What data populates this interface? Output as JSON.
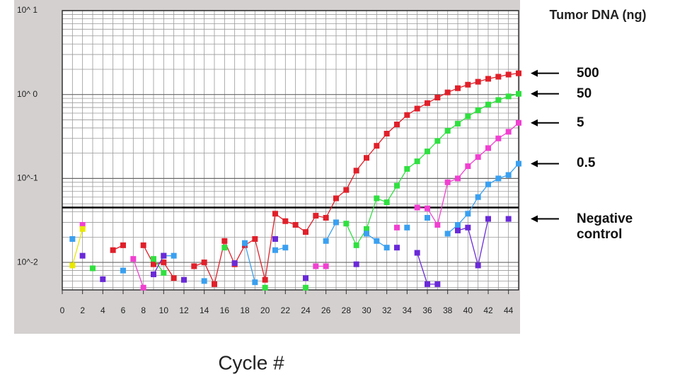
{
  "chart_data": {
    "type": "line",
    "legend_title": "Tumor DNA (ng)",
    "xlabel": "Cycle #",
    "log_y": true,
    "grid": true,
    "threshold": 0.045,
    "xlim": [
      0,
      45
    ],
    "ylim": [
      0.0047,
      10
    ],
    "xticks": [
      0,
      2,
      4,
      6,
      8,
      10,
      12,
      14,
      16,
      18,
      20,
      22,
      24,
      26,
      28,
      30,
      32,
      34,
      36,
      38,
      40,
      42,
      44
    ],
    "yticks": [
      {
        "value": 10,
        "label": "10^ 1"
      },
      {
        "value": 1,
        "label": "10^ 0"
      },
      {
        "value": 0.1,
        "label": "10^-1"
      },
      {
        "value": 0.01,
        "label": "10^-2"
      }
    ],
    "yminor": [
      0.005,
      0.006,
      0.007,
      0.008,
      0.009,
      0.02,
      0.03,
      0.04,
      0.05,
      0.06,
      0.07,
      0.08,
      0.09,
      0.2,
      0.3,
      0.4,
      0.5,
      0.6,
      0.7,
      0.8,
      0.9,
      2,
      3,
      4,
      5,
      6,
      7,
      8,
      9
    ],
    "x": [
      1,
      2,
      3,
      4,
      5,
      6,
      7,
      8,
      9,
      10,
      11,
      12,
      13,
      14,
      15,
      16,
      17,
      18,
      19,
      20,
      21,
      22,
      23,
      24,
      25,
      26,
      27,
      28,
      29,
      30,
      31,
      32,
      33,
      34,
      35,
      36,
      37,
      38,
      39,
      40,
      41,
      42,
      43,
      44,
      45
    ],
    "series": [
      {
        "name": "500",
        "color": "#e0202a",
        "values": [
          null,
          null,
          null,
          null,
          0.014,
          0.016,
          null,
          0.016,
          0.0095,
          0.01,
          0.0065,
          null,
          0.009,
          0.01,
          0.0055,
          0.018,
          0.0095,
          0.016,
          0.019,
          0.0062,
          0.038,
          0.031,
          0.028,
          0.023,
          0.036,
          0.034,
          0.058,
          0.073,
          0.124,
          0.176,
          0.245,
          0.342,
          0.44,
          0.57,
          0.68,
          0.79,
          0.92,
          1.06,
          1.19,
          1.31,
          1.42,
          1.54,
          1.63,
          1.73,
          1.79
        ]
      },
      {
        "name": "50",
        "color": "#30e040",
        "values": [
          null,
          null,
          0.0085,
          null,
          null,
          null,
          null,
          null,
          0.011,
          0.0075,
          null,
          null,
          null,
          null,
          null,
          0.015,
          null,
          null,
          null,
          0.005,
          null,
          null,
          null,
          0.005,
          null,
          null,
          null,
          0.029,
          0.016,
          0.025,
          0.058,
          0.052,
          0.082,
          0.13,
          0.16,
          0.21,
          0.28,
          0.37,
          0.45,
          0.55,
          0.65,
          0.76,
          0.86,
          0.95,
          1.02
        ]
      },
      {
        "name": "5",
        "color": "#f040d0",
        "values": [
          null,
          0.028,
          null,
          null,
          null,
          null,
          0.011,
          0.005,
          null,
          null,
          null,
          null,
          null,
          null,
          null,
          null,
          null,
          null,
          null,
          null,
          null,
          null,
          null,
          null,
          0.009,
          0.009,
          null,
          null,
          null,
          null,
          null,
          null,
          0.026,
          null,
          0.045,
          0.044,
          0.028,
          0.09,
          0.1,
          0.14,
          0.18,
          0.23,
          0.3,
          0.36,
          0.46
        ]
      },
      {
        "name": "0.5",
        "color": "#3aa0f0",
        "values": [
          0.019,
          null,
          null,
          null,
          null,
          0.008,
          null,
          null,
          null,
          0.012,
          0.012,
          null,
          null,
          0.006,
          null,
          null,
          null,
          0.017,
          0.0058,
          null,
          0.014,
          0.015,
          null,
          null,
          null,
          0.018,
          0.03,
          null,
          null,
          0.022,
          0.018,
          0.015,
          null,
          0.026,
          null,
          0.034,
          null,
          0.022,
          0.028,
          0.038,
          0.06,
          0.085,
          0.1,
          0.11,
          0.15
        ]
      },
      {
        "name": "Negative control",
        "color": "#6a2ad8",
        "values": [
          null,
          0.012,
          null,
          0.0063,
          null,
          null,
          null,
          null,
          0.0072,
          0.012,
          null,
          0.0062,
          null,
          null,
          null,
          null,
          0.0098,
          null,
          null,
          null,
          0.019,
          null,
          null,
          0.0065,
          null,
          null,
          null,
          null,
          0.0095,
          null,
          null,
          null,
          0.015,
          null,
          0.013,
          0.0055,
          0.0055,
          null,
          0.024,
          0.026,
          0.0092,
          0.033,
          null,
          0.033,
          null
        ]
      },
      {
        "color": "#e8e800",
        "values": [
          0.0092,
          0.025,
          null,
          null,
          null,
          null,
          null,
          null,
          null,
          null,
          null,
          null,
          null,
          null,
          null,
          null,
          null,
          null,
          null,
          null,
          null,
          null,
          null,
          null,
          null,
          null,
          null,
          null,
          null,
          null,
          null,
          null,
          null,
          null,
          null,
          null,
          null,
          null,
          null,
          null,
          null,
          null,
          null,
          null,
          null
        ]
      }
    ]
  }
}
